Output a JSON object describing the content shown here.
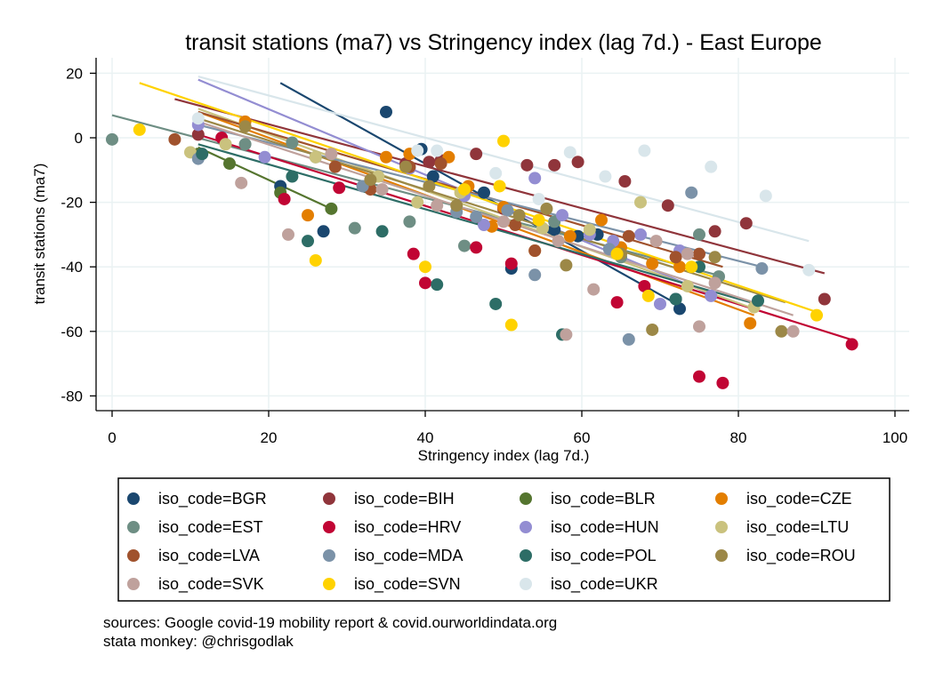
{
  "chart_data": {
    "type": "scatter",
    "title": "transit stations (ma7) vs Stringency index (lag 7d.) - East Europe",
    "xlabel": "Stringency index (lag 7d.)",
    "ylabel": "transit stations (ma7)",
    "xlim": [
      0,
      100
    ],
    "ylim": [
      -85,
      22
    ],
    "xticks": [
      "0",
      "20",
      "40",
      "60",
      "80",
      "100"
    ],
    "yticks": [
      "20",
      "0",
      "-20",
      "-40",
      "-60",
      "-80"
    ],
    "grid": true,
    "legend_position": "bottom",
    "series": [
      {
        "name": "iso_code=BGR",
        "color": "#1a476f",
        "points": [
          [
            21.5,
            -15
          ],
          [
            27,
            -29
          ],
          [
            35,
            8
          ],
          [
            39.5,
            -3.5
          ],
          [
            41,
            -12
          ],
          [
            47.5,
            -17
          ],
          [
            51,
            -40.5
          ],
          [
            56.5,
            -28.5
          ],
          [
            59.5,
            -30.5
          ],
          [
            62,
            -30
          ],
          [
            72,
            -50
          ],
          [
            72.5,
            -53
          ]
        ],
        "fit": [
          [
            21.5,
            17
          ],
          [
            72.5,
            -52
          ]
        ]
      },
      {
        "name": "iso_code=BIH",
        "color": "#90353b",
        "points": [
          [
            11,
            1
          ],
          [
            37.5,
            -8
          ],
          [
            40.5,
            -7.5
          ],
          [
            42,
            -7
          ],
          [
            46.5,
            -5
          ],
          [
            50,
            -22
          ],
          [
            53,
            -8.5
          ],
          [
            56.5,
            -8.5
          ],
          [
            59.5,
            -7.5
          ],
          [
            65.5,
            -13.5
          ],
          [
            71,
            -21
          ],
          [
            77,
            -29
          ],
          [
            81,
            -26.5
          ],
          [
            91,
            -50
          ]
        ],
        "fit": [
          [
            8,
            12
          ],
          [
            91,
            -42
          ]
        ]
      },
      {
        "name": "iso_code=BLR",
        "color": "#55752f",
        "points": [
          [
            11,
            -5
          ],
          [
            15,
            -8
          ],
          [
            21.5,
            -17
          ],
          [
            28,
            -22
          ]
        ],
        "fit": [
          [
            11,
            -3
          ],
          [
            28,
            -22
          ]
        ]
      },
      {
        "name": "iso_code=CZE",
        "color": "#e37e00",
        "points": [
          [
            17,
            5
          ],
          [
            25,
            -24
          ],
          [
            35,
            -6
          ],
          [
            38,
            -5
          ],
          [
            43,
            -6
          ],
          [
            45.5,
            -15
          ],
          [
            48.5,
            -27.5
          ],
          [
            50,
            -21.5
          ],
          [
            54,
            -35
          ],
          [
            58.5,
            -30.5
          ],
          [
            62.5,
            -25.5
          ],
          [
            65,
            -34
          ],
          [
            69,
            -39
          ],
          [
            72.5,
            -40
          ],
          [
            81.5,
            -57.5
          ]
        ],
        "fit": [
          [
            11,
            8
          ],
          [
            82,
            -55
          ]
        ]
      },
      {
        "name": "iso_code=EST",
        "color": "#6e8e84",
        "points": [
          [
            0,
            -0.5
          ],
          [
            17,
            -2
          ],
          [
            23,
            -1.5
          ],
          [
            26,
            -6
          ],
          [
            31,
            -28
          ],
          [
            38,
            -26
          ],
          [
            45,
            -33.5
          ],
          [
            56.5,
            -26
          ],
          [
            65,
            -37
          ],
          [
            75,
            -30
          ],
          [
            77.5,
            -43
          ]
        ],
        "fit": [
          [
            0,
            7
          ],
          [
            78,
            -43
          ]
        ]
      },
      {
        "name": "iso_code=HRV",
        "color": "#c10534",
        "points": [
          [
            14,
            0
          ],
          [
            22,
            -19
          ],
          [
            29,
            -15.5
          ],
          [
            38.5,
            -36
          ],
          [
            40,
            -45
          ],
          [
            46.5,
            -34
          ],
          [
            51,
            -39
          ],
          [
            64.5,
            -51
          ],
          [
            68,
            -46
          ],
          [
            75,
            -74
          ],
          [
            78,
            -76
          ],
          [
            94.5,
            -64
          ]
        ],
        "fit": [
          [
            11,
            1
          ],
          [
            95,
            -63
          ]
        ]
      },
      {
        "name": "iso_code=HUN",
        "color": "#938dd2",
        "points": [
          [
            11,
            4
          ],
          [
            19.5,
            -6
          ],
          [
            38,
            -9.5
          ],
          [
            45,
            -18
          ],
          [
            47.5,
            -27
          ],
          [
            54,
            -12.5
          ],
          [
            57.5,
            -24
          ],
          [
            61,
            -30
          ],
          [
            64,
            -32
          ],
          [
            67.5,
            -30
          ],
          [
            70,
            -51.5
          ],
          [
            72.5,
            -35
          ],
          [
            76.5,
            -49
          ]
        ],
        "fit": [
          [
            11,
            18
          ],
          [
            77,
            -49
          ]
        ]
      },
      {
        "name": "iso_code=LTU",
        "color": "#cac27e",
        "points": [
          [
            10,
            -4.5
          ],
          [
            14.5,
            -2
          ],
          [
            26,
            -6
          ],
          [
            34,
            -12
          ],
          [
            39,
            -20
          ],
          [
            44.5,
            -17
          ],
          [
            55,
            -28
          ],
          [
            61,
            -28.5
          ],
          [
            67.5,
            -20
          ],
          [
            73.5,
            -46
          ],
          [
            82,
            -52.5
          ]
        ],
        "fit": [
          [
            11,
            9
          ],
          [
            82,
            -53
          ]
        ]
      },
      {
        "name": "iso_code=LVA",
        "color": "#a0522d",
        "points": [
          [
            8,
            -0.5
          ],
          [
            28.5,
            -9
          ],
          [
            33,
            -16
          ],
          [
            38,
            -9
          ],
          [
            42,
            -8
          ],
          [
            51.5,
            -27
          ],
          [
            54,
            -35
          ],
          [
            66,
            -30.5
          ],
          [
            72,
            -37
          ],
          [
            75,
            -36
          ]
        ],
        "fit": [
          [
            11,
            8
          ],
          [
            78,
            -40
          ]
        ]
      },
      {
        "name": "iso_code=MDA",
        "color": "#7b92a8",
        "points": [
          [
            11,
            -6.5
          ],
          [
            32,
            -15
          ],
          [
            44,
            -23
          ],
          [
            46.5,
            -24.5
          ],
          [
            50.5,
            -22.5
          ],
          [
            54,
            -42.5
          ],
          [
            63.5,
            -34.5
          ],
          [
            66,
            -62.5
          ],
          [
            74,
            -17
          ],
          [
            83,
            -40.5
          ]
        ],
        "fit": [
          [
            11,
            4
          ],
          [
            83,
            -40
          ]
        ]
      },
      {
        "name": "iso_code=POL",
        "color": "#2d6d66",
        "points": [
          [
            11.5,
            -5
          ],
          [
            23,
            -12
          ],
          [
            25,
            -32
          ],
          [
            34.5,
            -29
          ],
          [
            41.5,
            -45.5
          ],
          [
            49,
            -51.5
          ],
          [
            57.5,
            -61
          ],
          [
            72,
            -50
          ],
          [
            75,
            -40
          ],
          [
            82.5,
            -50.5
          ]
        ],
        "fit": [
          [
            11,
            -2
          ],
          [
            83,
            -52
          ]
        ]
      },
      {
        "name": "iso_code=ROU",
        "color": "#9c8847",
        "points": [
          [
            17,
            3.5
          ],
          [
            33,
            -13
          ],
          [
            37.5,
            -9
          ],
          [
            40.5,
            -15
          ],
          [
            44,
            -21
          ],
          [
            52,
            -24
          ],
          [
            55.5,
            -22
          ],
          [
            58,
            -39.5
          ],
          [
            65,
            -36
          ],
          [
            69,
            -59.5
          ],
          [
            77,
            -37
          ],
          [
            85.5,
            -60
          ]
        ],
        "fit": [
          [
            11,
            6
          ],
          [
            86,
            -51
          ]
        ]
      },
      {
        "name": "iso_code=SVK",
        "color": "#bfa19c",
        "points": [
          [
            16.5,
            -14
          ],
          [
            22.5,
            -30
          ],
          [
            28,
            -5
          ],
          [
            34.5,
            -16
          ],
          [
            41.5,
            -21
          ],
          [
            50,
            -26
          ],
          [
            57,
            -32
          ],
          [
            58,
            -61
          ],
          [
            61.5,
            -47
          ],
          [
            69.5,
            -32
          ],
          [
            73.5,
            -36
          ],
          [
            75,
            -58.5
          ],
          [
            77,
            -45
          ],
          [
            87,
            -60
          ]
        ],
        "fit": [
          [
            11,
            5
          ],
          [
            87,
            -55
          ]
        ]
      },
      {
        "name": "iso_code=SVN",
        "color": "#ffd200",
        "points": [
          [
            3.5,
            2.5
          ],
          [
            26,
            -38
          ],
          [
            40,
            -40
          ],
          [
            45,
            -16
          ],
          [
            49.5,
            -15
          ],
          [
            50,
            -1
          ],
          [
            51,
            -58
          ],
          [
            54.5,
            -25.5
          ],
          [
            64.5,
            -36
          ],
          [
            68.5,
            -49
          ],
          [
            74,
            -40
          ],
          [
            90,
            -55
          ]
        ],
        "fit": [
          [
            3.5,
            17
          ],
          [
            90,
            -54
          ]
        ]
      },
      {
        "name": "iso_code=UKR",
        "color": "#d9e6eb",
        "points": [
          [
            11,
            6
          ],
          [
            39,
            -4
          ],
          [
            41.5,
            -4
          ],
          [
            49,
            -11
          ],
          [
            54.5,
            -19
          ],
          [
            58.5,
            -4.5
          ],
          [
            63,
            -12
          ],
          [
            68,
            -4
          ],
          [
            76.5,
            -9
          ],
          [
            83.5,
            -18
          ],
          [
            89,
            -41
          ]
        ],
        "fit": [
          [
            11,
            19
          ],
          [
            89,
            -32
          ]
        ]
      }
    ]
  },
  "notes": {
    "line1": "sources: Google covid-19 mobility report & covid.ourworldindata.org",
    "line2": "stata monkey: @chrisgodlak"
  }
}
